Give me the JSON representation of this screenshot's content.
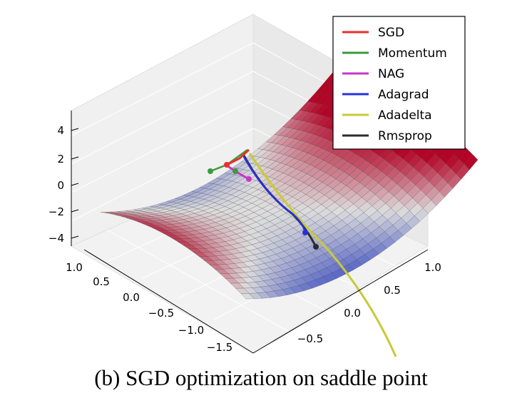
{
  "chart_data": {
    "type": "surface3d",
    "title": "",
    "surface": "z = x^2 - y^2 (saddle)",
    "colormap": [
      "#3b4cc0",
      "#dddddd",
      "#b40426"
    ],
    "axes": {
      "x": {
        "ticks": [
          "1.0",
          "0.5",
          "0.0",
          "−0.5",
          "−1.0",
          "−1.5"
        ],
        "range": [
          -1.5,
          1.0
        ]
      },
      "y": {
        "ticks": [
          "1.0",
          "0.5",
          "0.0",
          "−0.5"
        ],
        "range": [
          -0.7,
          1.0
        ]
      },
      "z": {
        "ticks": [
          "4",
          "2",
          "0",
          "−2",
          "−4"
        ],
        "range": [
          -4,
          4
        ]
      }
    },
    "legend": {
      "placement": "top-right",
      "entries": [
        {
          "label": "SGD",
          "color": "#e8302e"
        },
        {
          "label": "Momentum",
          "color": "#3d9a3d"
        },
        {
          "label": "NAG",
          "color": "#c936c9"
        },
        {
          "label": "Adagrad",
          "color": "#2532e0"
        },
        {
          "label": "Adadelta",
          "color": "#c9c93a"
        },
        {
          "label": "Rmsprop",
          "color": "#2b2b2b"
        }
      ]
    }
  },
  "caption": "(b) SGD optimization on saddle point"
}
